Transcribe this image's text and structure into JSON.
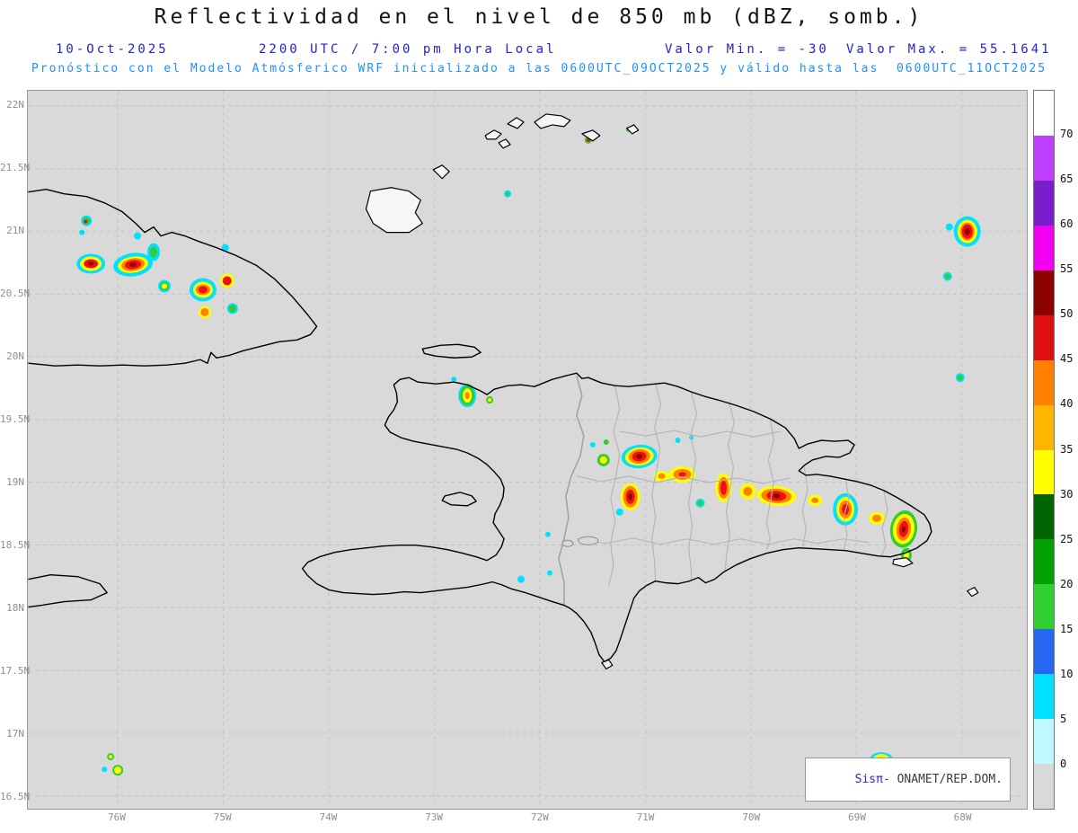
{
  "header": {
    "title": "Reflectividad en el nivel de 850 mb (dBZ, somb.)",
    "date": "10-Oct-2025",
    "local_time": "2200 UTC / 7:00 pm Hora Local",
    "value_min": "Valor Min. = -30",
    "value_max": "Valor Max. = 55.1641",
    "forecast": "Pronóstico con el Modelo Atmósferico WRF inicializado a las 0600UTC_09OCT2025 y válido hasta las  0600UTC_11OCT2025"
  },
  "map": {
    "lat_ticks": [
      "22N",
      "21.5N",
      "21N",
      "20.5N",
      "20N",
      "19.5N",
      "19N",
      "18.5N",
      "18N",
      "17.5N",
      "17N",
      "16.5N"
    ],
    "lon_ticks": [
      "76W",
      "75W",
      "74W",
      "73W",
      "72W",
      "71W",
      "70W",
      "69W",
      "68W"
    ]
  },
  "colorbar": {
    "labels": [
      "70",
      "65",
      "60",
      "55",
      "50",
      "45",
      "40",
      "35",
      "30",
      "25",
      "20",
      "15",
      "10",
      "5",
      "0"
    ],
    "colors": [
      "#ffffff",
      "#bf3eff",
      "#7a1dcb",
      "#f000f0",
      "#8b0000",
      "#e01010",
      "#ff7f00",
      "#ffb400",
      "#ffff00",
      "#006400",
      "#00a000",
      "#30d030",
      "#2868f0",
      "#00e0ff",
      "#c0f8ff",
      "#d9d9d9"
    ]
  },
  "attribution": {
    "brand": "Sisπ",
    "text": "- ONAMET/REP.DOM."
  },
  "palette": {
    "subtitle-blue": "#2323cd",
    "forecast-blue": "#1e90ff",
    "map-bg": "#d9d9d9",
    "coastline": "#000000",
    "province-gray": "#b4b4b4",
    "grid-gray": "#c3c3c3",
    "axis-gray": "#8e8e8e"
  }
}
